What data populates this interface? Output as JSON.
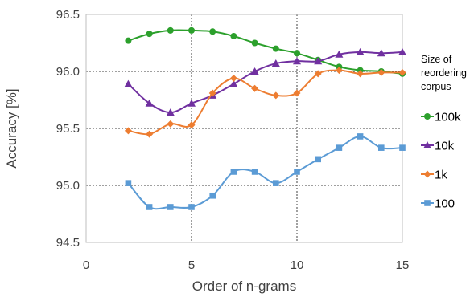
{
  "chart_data": {
    "type": "line",
    "title": "",
    "xlabel": "Order of n-grams",
    "ylabel": "Accuracy [%]",
    "xlim": [
      0,
      15
    ],
    "ylim": [
      94.5,
      96.5
    ],
    "xticks": [
      0,
      5,
      10,
      15
    ],
    "yticks": [
      94.5,
      95.0,
      95.5,
      96.0,
      96.5
    ],
    "xtick_labels": [
      "0",
      "5",
      "10",
      "15"
    ],
    "ytick_labels": [
      "94.5",
      "95.0",
      "95.5",
      "96.0",
      "96.5"
    ],
    "grid": "dashed lines at x = 5, 10 and y = 95.0, 95.5, 96.0",
    "smoothed": true,
    "legend": {
      "title": [
        "Size of",
        "reordering",
        "corpus"
      ],
      "placement": "right"
    },
    "x": [
      2,
      3,
      4,
      5,
      6,
      7,
      8,
      9,
      10,
      11,
      12,
      13,
      14,
      15
    ],
    "series": [
      {
        "name": "100k",
        "color": "#2ca02c",
        "marker": "circle",
        "values": [
          96.27,
          96.33,
          96.36,
          96.36,
          96.35,
          96.31,
          96.25,
          96.2,
          96.16,
          96.1,
          96.04,
          96.01,
          96.0,
          95.98
        ]
      },
      {
        "name": "10k",
        "color": "#7030a0",
        "marker": "triangle",
        "values": [
          95.89,
          95.72,
          95.64,
          95.72,
          95.79,
          95.89,
          96.0,
          96.07,
          96.09,
          96.09,
          96.15,
          96.17,
          96.16,
          96.17
        ]
      },
      {
        "name": "1k",
        "color": "#ed7d31",
        "marker": "diamond",
        "values": [
          95.48,
          95.45,
          95.54,
          95.53,
          95.81,
          95.94,
          95.85,
          95.79,
          95.81,
          95.98,
          96.01,
          95.98,
          95.99,
          95.99
        ]
      },
      {
        "name": "100",
        "color": "#5b9bd5",
        "marker": "square",
        "values": [
          95.02,
          94.81,
          94.81,
          94.81,
          94.91,
          95.12,
          95.12,
          95.02,
          95.12,
          95.23,
          95.33,
          95.43,
          95.33,
          95.33
        ]
      }
    ]
  }
}
